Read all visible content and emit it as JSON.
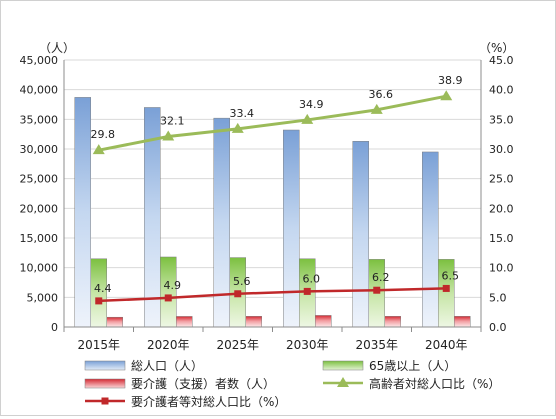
{
  "chart_data": {
    "type": "bar",
    "title": "",
    "categories": [
      "2015年",
      "2020年",
      "2025年",
      "2030年",
      "2035年",
      "2040年"
    ],
    "left_axis": {
      "unit": "（人）",
      "min": 0,
      "max": 45000,
      "step": 5000,
      "tick_labels": [
        "0",
        "5,000",
        "10,000",
        "15,000",
        "20,000",
        "25,000",
        "30,000",
        "35,000",
        "40,000",
        "45,000"
      ]
    },
    "right_axis": {
      "unit": "（%）",
      "min": 0,
      "max": 45,
      "step": 5,
      "tick_labels": [
        "0.0",
        "5.0",
        "10.0",
        "15.0",
        "20.0",
        "25.0",
        "30.0",
        "35.0",
        "40.0",
        "45.0"
      ]
    },
    "grid": true,
    "legend_position": "bottom",
    "series": [
      {
        "name": "総人口（人）",
        "kind": "bar",
        "axis": "left",
        "color": "#8eb4e3",
        "values": [
          38700,
          37000,
          35200,
          33200,
          31300,
          29500
        ]
      },
      {
        "name": "65歳以上（人）",
        "kind": "bar",
        "axis": "left",
        "color": "#92d050",
        "values": [
          11500,
          11800,
          11700,
          11500,
          11400,
          11400
        ]
      },
      {
        "name": "要介護（支援）者数（人）",
        "kind": "bar",
        "axis": "left",
        "color": "#e0313a",
        "values": [
          1650,
          1780,
          1800,
          1950,
          1800,
          1800
        ]
      },
      {
        "name": "高齢者対総人口比（%）",
        "kind": "line",
        "axis": "right",
        "color": "#9bbb59",
        "values": [
          29.8,
          32.1,
          33.4,
          34.9,
          36.6,
          38.9
        ],
        "labels": [
          "29.8",
          "32.1",
          "33.4",
          "34.9",
          "36.6",
          "38.9"
        ]
      },
      {
        "name": "要介護者等対総人口比（%）",
        "kind": "line",
        "axis": "right",
        "color": "#c0282a",
        "values": [
          4.4,
          4.9,
          5.6,
          6.0,
          6.2,
          6.5
        ],
        "labels": [
          "4.4",
          "4.9",
          "5.6",
          "6.0",
          "6.2",
          "6.5"
        ]
      }
    ]
  }
}
